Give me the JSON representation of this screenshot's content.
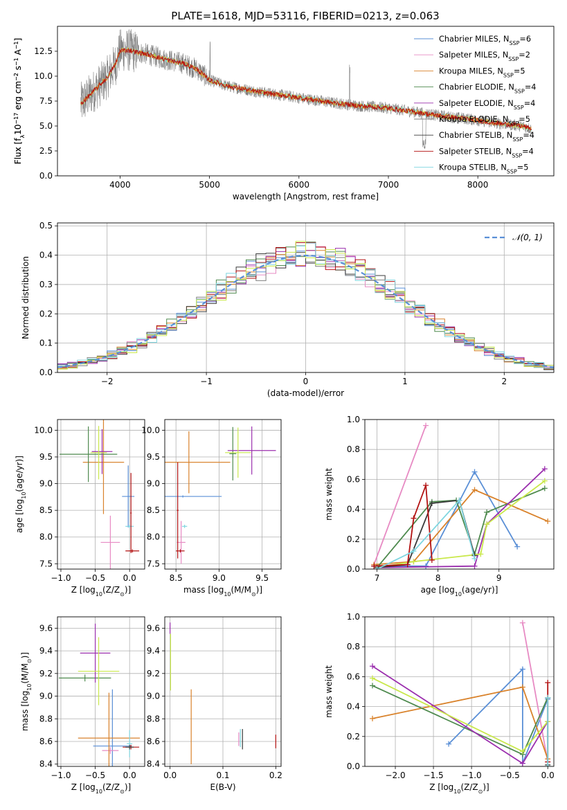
{
  "title": "PLATE=1618, MJD=53116, FIBERID=0213, z=0.063",
  "colors": {
    "series": [
      "#5a8fd6",
      "#e78ac3",
      "#d9822b",
      "#4e8a4e",
      "#9b2fae",
      "#7f7f7f",
      "#3a3a3a",
      "#b21010",
      "#7fd6e0"
    ],
    "lime": "#c9e84a",
    "spectrum": "#808080",
    "dashed_fit": "#5a8fd6"
  },
  "chart_data": [
    {
      "id": "spectrum",
      "type": "line",
      "xlabel": "wavelength [Angstrom, rest frame]",
      "ylabel": "Flux [f$_{\\lambda}$10$^{-17}$ erg cm$^{-2}$ s$^{-1}$ A$^{-1}$]",
      "ylabel_parts": {
        "a": "Flux [f",
        "a_sub": "λ",
        "b": "10",
        "b_sup": "−17",
        "c": " erg cm",
        "c_sup": "−2",
        "d": " s",
        "d_sup": "−1",
        "e": " A",
        "e_sup": "−1",
        "f": "]"
      },
      "xlim": [
        3300,
        8850
      ],
      "ylim": [
        0,
        15
      ],
      "xticks": [
        4000,
        5000,
        6000,
        7000,
        8000
      ],
      "xtick_labels": [
        "4000",
        "5000",
        "6000",
        "7000",
        "8000"
      ],
      "yticks": [
        0.0,
        2.5,
        5.0,
        7.5,
        10.0,
        12.5
      ],
      "ytick_labels": [
        "0.0",
        "2.5",
        "5.0",
        "7.5",
        "10.0",
        "12.5"
      ],
      "grid": false,
      "legend_position": "top-right",
      "model_curve": {
        "x": [
          3560,
          3650,
          3750,
          3850,
          3950,
          4000,
          4100,
          4300,
          4500,
          4700,
          4860,
          5000,
          5200,
          5500,
          5800,
          6100,
          6400,
          6700,
          7000,
          7300,
          7600,
          7900,
          8200,
          8500,
          8600
        ],
        "y": [
          7.2,
          8.0,
          8.9,
          9.8,
          11.2,
          12.6,
          12.6,
          12.2,
          11.7,
          11.3,
          10.7,
          9.6,
          9.0,
          8.5,
          8.1,
          7.7,
          7.3,
          7.0,
          6.8,
          6.4,
          6.0,
          5.7,
          5.3,
          5.0,
          4.7
        ]
      },
      "series": [
        {
          "name": "Chabrier MILES, N",
          "sub": "SSP",
          "suffix": "=6"
        },
        {
          "name": "Salpeter MILES, N",
          "sub": "SSP",
          "suffix": "=2"
        },
        {
          "name": "Kroupa MILES, N",
          "sub": "SSP",
          "suffix": "=5"
        },
        {
          "name": "Chabrier ELODIE, N",
          "sub": "SSP",
          "suffix": "=4"
        },
        {
          "name": "Salpeter ELODIE, N",
          "sub": "SSP",
          "suffix": "=4"
        },
        {
          "name": "Kroupa ELODIE, N",
          "sub": "SSP",
          "suffix": "=5"
        },
        {
          "name": "Chabrier STELIB, N",
          "sub": "SSP",
          "suffix": "=4"
        },
        {
          "name": "Salpeter STELIB, N",
          "sub": "SSP",
          "suffix": "=4"
        },
        {
          "name": "Kroupa STELIB, N",
          "sub": "SSP",
          "suffix": "=5"
        }
      ]
    },
    {
      "id": "residuals",
      "type": "line",
      "xlabel": "(data-model)/error",
      "ylabel": "Normed distribution",
      "xlim": [
        -2.5,
        2.5
      ],
      "ylim": [
        0,
        0.51
      ],
      "xticks": [
        -2,
        -1,
        0,
        1,
        2
      ],
      "xtick_labels": [
        "−2",
        "−1",
        "0",
        "1",
        "2"
      ],
      "yticks": [
        0.0,
        0.1,
        0.2,
        0.3,
        0.4,
        0.5
      ],
      "ytick_labels": [
        "0.0",
        "0.1",
        "0.2",
        "0.3",
        "0.4",
        "0.5"
      ],
      "grid": true,
      "legend_position": "top-right",
      "legend_label": "𝒩(0, 1)",
      "gaussian": {
        "mean": 0,
        "sigma": 1
      },
      "histogram_bin_width": 0.1
    },
    {
      "id": "age_vs_Z",
      "type": "scatter",
      "xlabel_parts": {
        "a": "Z [log",
        "a_sub": "10",
        "b": "(Z/Z",
        "b_sub": "⊙",
        "c": ")]"
      },
      "ylabel_parts": {
        "a": "age  [log",
        "a_sub": "10",
        "b": "(age/yr)]"
      },
      "xlim": [
        -1.05,
        0.22
      ],
      "ylim": [
        7.4,
        10.2
      ],
      "xticks": [
        -1.0,
        -0.5,
        0.0
      ],
      "xtick_labels": [
        "−1.0",
        "−0.5",
        "0.0"
      ],
      "yticks": [
        7.5,
        8.0,
        8.5,
        9.0,
        9.5,
        10.0
      ],
      "ytick_labels": [
        "7.5",
        "8.0",
        "8.5",
        "9.0",
        "9.5",
        "10.0"
      ],
      "grid": true,
      "points": [
        {
          "x": -0.02,
          "xerr": 0.09,
          "y": 8.76,
          "yerr": 0.58,
          "c": 0
        },
        {
          "x": -0.28,
          "xerr": 0.14,
          "y": 7.9,
          "yerr": 0.5,
          "c": 1
        },
        {
          "x": -0.38,
          "xerr": 0.3,
          "y": 9.4,
          "yerr": 0.97,
          "c": 2
        },
        {
          "x": -0.6,
          "xerr": 0.42,
          "y": 9.55,
          "yerr": 0.52,
          "c": 3
        },
        {
          "x": -0.4,
          "xerr": 0.15,
          "y": 9.6,
          "yerr": 0.42,
          "c": 4
        },
        {
          "x": -0.45,
          "xerr": 0.12,
          "y": 9.58,
          "yerr": 0.5,
          "c": 9
        },
        {
          "x": 0.0,
          "xerr": 0.06,
          "y": 8.2,
          "yerr": 0.03,
          "c": 8
        },
        {
          "x": 0.04,
          "xerr": 0.1,
          "y": 7.74,
          "yerr": 0.03,
          "c": 7
        },
        {
          "x": 0.02,
          "xerr": 0.01,
          "y": 8.45,
          "yerr": 0.75,
          "c": 7
        }
      ]
    },
    {
      "id": "age_vs_mass",
      "type": "scatter",
      "xlabel_parts": {
        "a": "mass [log",
        "a_sub": "10",
        "b": "(M/M",
        "b_sub": "⊙",
        "c": ")]"
      },
      "xlim": [
        8.37,
        9.72
      ],
      "ylim": [
        7.4,
        10.2
      ],
      "xticks": [
        8.5,
        9.0,
        9.5
      ],
      "xtick_labels": [
        "8.5",
        "9.0",
        "9.5"
      ],
      "yticks": [
        7.5,
        8.0,
        8.5,
        9.0,
        9.5,
        10.0
      ],
      "ytick_labels": [
        "7.5",
        "8.0",
        "8.5",
        "9.0",
        "9.5",
        "10.0"
      ],
      "grid": true,
      "points": [
        {
          "x": 8.58,
          "xerr": 0.45,
          "y": 8.76,
          "yerr": 0.02,
          "c": 0
        },
        {
          "x": 8.56,
          "xerr": 0.05,
          "y": 7.9,
          "yerr": 0.4,
          "c": 1
        },
        {
          "x": 8.65,
          "xerr": 0.48,
          "y": 9.4,
          "yerr": 0.58,
          "c": 2
        },
        {
          "x": 9.16,
          "xerr": 0.04,
          "y": 9.56,
          "yerr": 0.5,
          "c": 3
        },
        {
          "x": 9.38,
          "xerr": 0.28,
          "y": 9.62,
          "yerr": 0.45,
          "c": 4
        },
        {
          "x": 9.22,
          "xerr": 0.15,
          "y": 9.58,
          "yerr": 0.47,
          "c": 9
        },
        {
          "x": 8.6,
          "xerr": 0.03,
          "y": 8.2,
          "yerr": 0.03,
          "c": 8
        },
        {
          "x": 8.55,
          "xerr": 0.05,
          "y": 7.74,
          "yerr": 0.03,
          "c": 7
        },
        {
          "x": 8.52,
          "xerr": 0.01,
          "y": 8.5,
          "yerr": 0.9,
          "c": 7
        }
      ]
    },
    {
      "id": "weight_vs_age",
      "type": "line",
      "xlabel_parts": {
        "a": "age  [log",
        "a_sub": "10",
        "b": "(age/yr)]"
      },
      "ylabel": "mass weight",
      "xlim": [
        6.8,
        9.9
      ],
      "ylim": [
        0,
        1
      ],
      "xticks": [
        7,
        8,
        9
      ],
      "xtick_labels": [
        "7",
        "8",
        "9"
      ],
      "yticks": [
        0.0,
        0.2,
        0.4,
        0.6,
        0.8,
        1.0
      ],
      "ytick_labels": [
        "0.0",
        "0.2",
        "0.4",
        "0.6",
        "0.8",
        "1.0"
      ],
      "grid": true,
      "series": [
        {
          "c": 0,
          "x": [
            6.95,
            7.8,
            8.6,
            9.3
          ],
          "y": [
            0.02,
            0.02,
            0.65,
            0.15
          ]
        },
        {
          "c": 1,
          "x": [
            6.95,
            7.8
          ],
          "y": [
            0.03,
            0.96
          ]
        },
        {
          "c": 2,
          "x": [
            6.95,
            7.6,
            8.6,
            9.8
          ],
          "y": [
            0.03,
            0.05,
            0.53,
            0.32
          ]
        },
        {
          "c": 3,
          "x": [
            7.0,
            7.9,
            8.3,
            8.6,
            8.8,
            9.75
          ],
          "y": [
            0.01,
            0.45,
            0.46,
            0.1,
            0.38,
            0.54
          ]
        },
        {
          "c": 4,
          "x": [
            7.0,
            8.6,
            8.8,
            9.75
          ],
          "y": [
            0.01,
            0.02,
            0.3,
            0.67
          ]
        },
        {
          "c": 9,
          "x": [
            7.0,
            7.6,
            8.7,
            8.8,
            9.75
          ],
          "y": [
            0.01,
            0.05,
            0.1,
            0.3,
            0.59
          ]
        },
        {
          "c": 6,
          "x": [
            7.0,
            7.5,
            7.9,
            8.35,
            8.6
          ],
          "y": [
            0.01,
            0.03,
            0.44,
            0.46,
            0.09
          ]
        },
        {
          "c": 7,
          "x": [
            6.95,
            7.5,
            7.6,
            7.8,
            7.9
          ],
          "y": [
            0.02,
            0.03,
            0.34,
            0.56,
            0.06
          ]
        },
        {
          "c": 8,
          "x": [
            7.0,
            7.6,
            8.35,
            8.6
          ],
          "y": [
            0.0,
            0.12,
            0.46,
            0.07
          ]
        }
      ]
    },
    {
      "id": "mass_vs_Z",
      "type": "scatter",
      "xlabel_parts": {
        "a": "Z [log",
        "a_sub": "10",
        "b": "(Z/Z",
        "b_sub": "⊙",
        "c": ")]"
      },
      "ylabel_parts": {
        "a": "mass [log",
        "a_sub": "10",
        "b": "(M/M",
        "b_sub": "⊙",
        "c": ")]"
      },
      "xlim": [
        -1.05,
        0.22
      ],
      "ylim": [
        8.38,
        9.7
      ],
      "xticks": [
        -1.0,
        -0.5,
        0.0
      ],
      "xtick_labels": [
        "−1.0",
        "−0.5",
        "0.0"
      ],
      "yticks": [
        8.4,
        8.6,
        8.8,
        9.0,
        9.2,
        9.4,
        9.6
      ],
      "ytick_labels": [
        "8.4",
        "8.6",
        "8.8",
        "9.0",
        "9.2",
        "9.4",
        "9.6"
      ],
      "grid": true,
      "points": [
        {
          "x": -0.25,
          "xerr": 0.28,
          "y": 8.56,
          "yerr": 0.5,
          "c": 0
        },
        {
          "x": -0.28,
          "xerr": 0.12,
          "y": 8.52,
          "yerr": 0.03,
          "c": 1
        },
        {
          "x": -0.3,
          "xerr": 0.45,
          "y": 8.63,
          "yerr": 0.4,
          "c": 2
        },
        {
          "x": -0.65,
          "xerr": 0.38,
          "y": 9.16,
          "yerr": 0.03,
          "c": 3
        },
        {
          "x": -0.5,
          "xerr": 0.22,
          "y": 9.38,
          "yerr": 0.26,
          "c": 4
        },
        {
          "x": -0.45,
          "xerr": 0.3,
          "y": 9.22,
          "yerr": 0.3,
          "c": 9
        },
        {
          "x": 0.0,
          "xerr": 0.04,
          "y": 8.58,
          "yerr": 0.12,
          "c": 8
        },
        {
          "x": 0.02,
          "xerr": 0.12,
          "y": 8.55,
          "yerr": 0.02,
          "c": 7
        },
        {
          "x": 0.0,
          "xerr": 0.06,
          "y": 8.55,
          "yerr": 0.02,
          "c": 6
        }
      ]
    },
    {
      "id": "mass_vs_ebv",
      "type": "scatter",
      "xlabel": "E(B-V)",
      "xlim": [
        -0.01,
        0.21
      ],
      "ylim": [
        8.38,
        9.7
      ],
      "xticks": [
        0.0,
        0.1,
        0.2
      ],
      "xtick_labels": [
        "0.0",
        "0.1",
        "0.2"
      ],
      "yticks": [
        8.4,
        8.6,
        8.8,
        9.0,
        9.2,
        9.4,
        9.6
      ],
      "ytick_labels": [
        "8.4",
        "8.6",
        "8.8",
        "9.0",
        "9.2",
        "9.4",
        "9.6"
      ],
      "grid": true,
      "points": [
        {
          "x": 0.0,
          "y": 9.6,
          "yerr": 0.05,
          "c": 4
        },
        {
          "x": 0.001,
          "y": 9.3,
          "yerr": 0.25,
          "c": 9
        },
        {
          "x": 0.04,
          "y": 8.73,
          "yerr": 0.33,
          "c": 2
        },
        {
          "x": 0.13,
          "y": 8.62,
          "yerr": 0.06,
          "c": 1
        },
        {
          "x": 0.133,
          "y": 8.63,
          "yerr": 0.08,
          "c": 8
        },
        {
          "x": 0.137,
          "y": 8.62,
          "yerr": 0.09,
          "c": 6
        },
        {
          "x": 0.2,
          "y": 8.6,
          "yerr": 0.06,
          "c": 7
        }
      ]
    },
    {
      "id": "weight_vs_Z",
      "type": "line",
      "xlabel_parts": {
        "a": "Z [log",
        "a_sub": "10",
        "b": "(Z/Z",
        "b_sub": "⊙",
        "c": ")]"
      },
      "ylabel": "mass weight",
      "xlim": [
        -2.4,
        0.08
      ],
      "ylim": [
        0,
        1
      ],
      "xticks": [
        -2.0,
        -1.5,
        -1.0,
        -0.5,
        0.0
      ],
      "xtick_labels": [
        "−2.0",
        "−1.5",
        "−1.0",
        "−0.5",
        "0.0"
      ],
      "yticks": [
        0.0,
        0.2,
        0.4,
        0.6,
        0.8,
        1.0
      ],
      "ytick_labels": [
        "0.0",
        "0.2",
        "0.4",
        "0.6",
        "0.8",
        "1.0"
      ],
      "grid": true,
      "series": [
        {
          "c": 0,
          "x": [
            -1.3,
            -0.33,
            -0.33,
            0.0
          ],
          "y": [
            0.15,
            0.65,
            0.02,
            0.45
          ]
        },
        {
          "c": 1,
          "x": [
            -0.33,
            0.0
          ],
          "y": [
            0.96,
            0.03
          ]
        },
        {
          "c": 2,
          "x": [
            -2.3,
            -0.33,
            0.0
          ],
          "y": [
            0.32,
            0.53,
            0.05
          ]
        },
        {
          "c": 3,
          "x": [
            -2.3,
            -0.33,
            0.0
          ],
          "y": [
            0.54,
            0.08,
            0.46
          ]
        },
        {
          "c": 4,
          "x": [
            -2.3,
            -0.33,
            0.0
          ],
          "y": [
            0.67,
            0.02,
            0.3
          ]
        },
        {
          "c": 9,
          "x": [
            -2.3,
            -0.33,
            0.0
          ],
          "y": [
            0.59,
            0.1,
            0.3
          ]
        },
        {
          "c": 6,
          "x": [
            0.0,
            0.0
          ],
          "y": [
            0.46,
            0.01
          ]
        },
        {
          "c": 7,
          "x": [
            0.0,
            0.0
          ],
          "y": [
            0.56,
            0.03
          ]
        },
        {
          "c": 8,
          "x": [
            0.0,
            0.0
          ],
          "y": [
            0.46,
            0.0
          ]
        }
      ]
    }
  ]
}
